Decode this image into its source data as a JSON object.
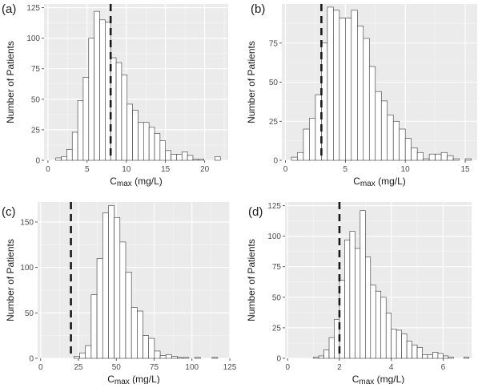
{
  "colors": {
    "panel_background": "#ebebeb",
    "grid_major": "#ffffff",
    "bar_fill": "#ffffff",
    "bar_stroke": "#333333",
    "reference_line": "#1a1a1a",
    "tick_text": "#4d4d4d",
    "axis_title": "#1a1a1a"
  },
  "chart_data": [
    {
      "panel_label": "(a)",
      "type": "bar",
      "subtype": "histogram",
      "title": "",
      "xlabel_main": "C",
      "xlabel_sub": "max",
      "xlabel_unit": "(mg/L)",
      "ylabel": "Number of Patients",
      "xlim": [
        -0.5,
        23.0
      ],
      "ylim": [
        0,
        128
      ],
      "xticks": [
        0,
        5,
        10,
        15,
        20
      ],
      "yticks": [
        0,
        25,
        50,
        75,
        100,
        125
      ],
      "bin_width": 0.7,
      "bin_starts": [
        1.0,
        1.7,
        2.4,
        3.1,
        3.8,
        4.5,
        5.2,
        5.9,
        6.6,
        7.3,
        8.0,
        8.7,
        9.4,
        10.1,
        10.8,
        11.5,
        12.2,
        12.9,
        13.6,
        14.3,
        15.0,
        15.7,
        16.4,
        17.1,
        17.8,
        18.5,
        19.2,
        19.9,
        20.6,
        21.3
      ],
      "counts": [
        2,
        3,
        9,
        23,
        49,
        68,
        100,
        122,
        115,
        113,
        84,
        80,
        70,
        46,
        41,
        31,
        31,
        27,
        22,
        16,
        8,
        5,
        5,
        7,
        4,
        1,
        1,
        0,
        0,
        3
      ],
      "reference_line": 8.0
    },
    {
      "panel_label": "(b)",
      "type": "bar",
      "subtype": "histogram",
      "title": "",
      "xlabel_main": "C",
      "xlabel_sub": "max",
      "xlabel_unit": "(mg/L)",
      "ylabel": "Number of Patients",
      "xlim": [
        -0.3,
        16.0
      ],
      "ylim": [
        0,
        100
      ],
      "xticks": [
        0,
        5,
        10,
        15
      ],
      "yticks": [
        0,
        25,
        50,
        75
      ],
      "bin_width": 0.5,
      "bin_starts": [
        0.5,
        1.0,
        1.5,
        2.0,
        2.5,
        3.0,
        3.5,
        4.0,
        4.5,
        5.0,
        5.5,
        6.0,
        6.5,
        7.0,
        7.5,
        8.0,
        8.5,
        9.0,
        9.5,
        10.0,
        10.5,
        11.0,
        11.5,
        12.0,
        12.5,
        13.0,
        13.5,
        14.0,
        14.5,
        15.0
      ],
      "counts": [
        2,
        5,
        20,
        27,
        42,
        75,
        98,
        96,
        91,
        91,
        96,
        86,
        78,
        60,
        44,
        38,
        29,
        25,
        20,
        14,
        8,
        5,
        1,
        4,
        4,
        5,
        3,
        1,
        0,
        1
      ],
      "reference_line": 3.0
    },
    {
      "panel_label": "(c)",
      "type": "bar",
      "subtype": "histogram",
      "title": "",
      "xlabel_main": "C",
      "xlabel_sub": "max",
      "xlabel_unit": "(mg/L)",
      "ylabel": "Number of Patients",
      "xlim": [
        -2.0,
        125.0
      ],
      "ylim": [
        0,
        172
      ],
      "xticks": [
        0,
        25,
        50,
        75,
        100,
        125
      ],
      "yticks": [
        0,
        50,
        100,
        150
      ],
      "bin_width": 3.8,
      "bin_starts": [
        22.0,
        25.8,
        29.6,
        33.4,
        37.2,
        41.0,
        44.8,
        48.6,
        52.4,
        56.2,
        60.0,
        63.8,
        67.6,
        71.4,
        75.2,
        79.0,
        82.8,
        86.6,
        90.4,
        94.2,
        98.0,
        101.8,
        105.6,
        109.4,
        113.2
      ],
      "counts": [
        2,
        6,
        14,
        70,
        110,
        160,
        168,
        155,
        128,
        95,
        56,
        52,
        25,
        22,
        8,
        3,
        4,
        2,
        1,
        1,
        0,
        1,
        0,
        0,
        1
      ],
      "reference_line": 20.0
    },
    {
      "panel_label": "(d)",
      "type": "bar",
      "subtype": "histogram",
      "title": "",
      "xlabel_main": "C",
      "xlabel_sub": "max",
      "xlabel_unit": "(mg/L)",
      "ylabel": "Number of Patients",
      "xlim": [
        -0.1,
        7.1
      ],
      "ylim": [
        0,
        128
      ],
      "xticks": [
        0,
        2,
        4,
        6
      ],
      "yticks": [
        0,
        25,
        50,
        75,
        100,
        125
      ],
      "bin_width": 0.2,
      "bin_starts": [
        1.0,
        1.2,
        1.4,
        1.6,
        1.8,
        2.0,
        2.2,
        2.4,
        2.6,
        2.8,
        3.0,
        3.2,
        3.4,
        3.6,
        3.8,
        4.0,
        4.2,
        4.4,
        4.6,
        4.8,
        5.0,
        5.2,
        5.4,
        5.6,
        5.8,
        6.0,
        6.2,
        6.4,
        6.6,
        6.8
      ],
      "counts": [
        1,
        2,
        7,
        17,
        32,
        64,
        97,
        104,
        90,
        121,
        83,
        60,
        55,
        50,
        37,
        24,
        23,
        20,
        14,
        11,
        9,
        3,
        3,
        5,
        4,
        2,
        1,
        0,
        0,
        1
      ],
      "reference_line": 2.0
    }
  ]
}
